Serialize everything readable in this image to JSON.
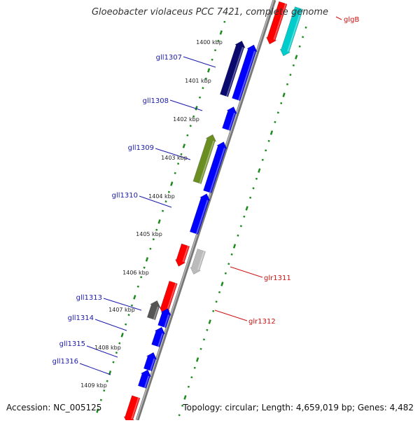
{
  "title": "Gloeobacter violaceus PCC 7421, complete genome",
  "accession": "Accession: NC_005125",
  "topology": "Topology: circular; Length: 4,659,019 bp; Genes: 4,482",
  "kbp_labels": [
    "1400 kbp",
    "1401 kbp",
    "1402 kbp",
    "1403 kbp",
    "1404 kbp",
    "1405 kbp",
    "1406 kbp",
    "1407 kbp",
    "1408 kbp",
    "1409 kbp"
  ],
  "genes": [
    {
      "name": "glgB",
      "strand": "forward",
      "color": "#cc1111"
    },
    {
      "name": "gll1307",
      "strand": "reverse",
      "color": "#1a1aaa"
    },
    {
      "name": "gll1308",
      "strand": "reverse",
      "color": "#1a1aaa"
    },
    {
      "name": "gll1309",
      "strand": "reverse",
      "color": "#1a1aaa"
    },
    {
      "name": "gll1310",
      "strand": "reverse",
      "color": "#1a1aaa"
    },
    {
      "name": "glr1311",
      "strand": "forward",
      "color": "#cc1111"
    },
    {
      "name": "glr1312",
      "strand": "forward",
      "color": "#cc1111"
    },
    {
      "name": "gll1313",
      "strand": "reverse",
      "color": "#1a1aaa"
    },
    {
      "name": "gll1314",
      "strand": "reverse",
      "color": "#1a1aaa"
    },
    {
      "name": "gll1315",
      "strand": "reverse",
      "color": "#1a1aaa"
    },
    {
      "name": "gll1316",
      "strand": "reverse",
      "color": "#1a1aaa"
    }
  ],
  "colors": {
    "forward_gene": "#ff0000",
    "reverse_gene": "#0000ff",
    "backbone": "#888888",
    "tick": "#1a8a1a",
    "dark_navy": "#0a0a6e",
    "olive": "#6b8e23",
    "cyan": "#00cccc",
    "gray": "#bbbbbb",
    "dark_gray": "#555555"
  }
}
